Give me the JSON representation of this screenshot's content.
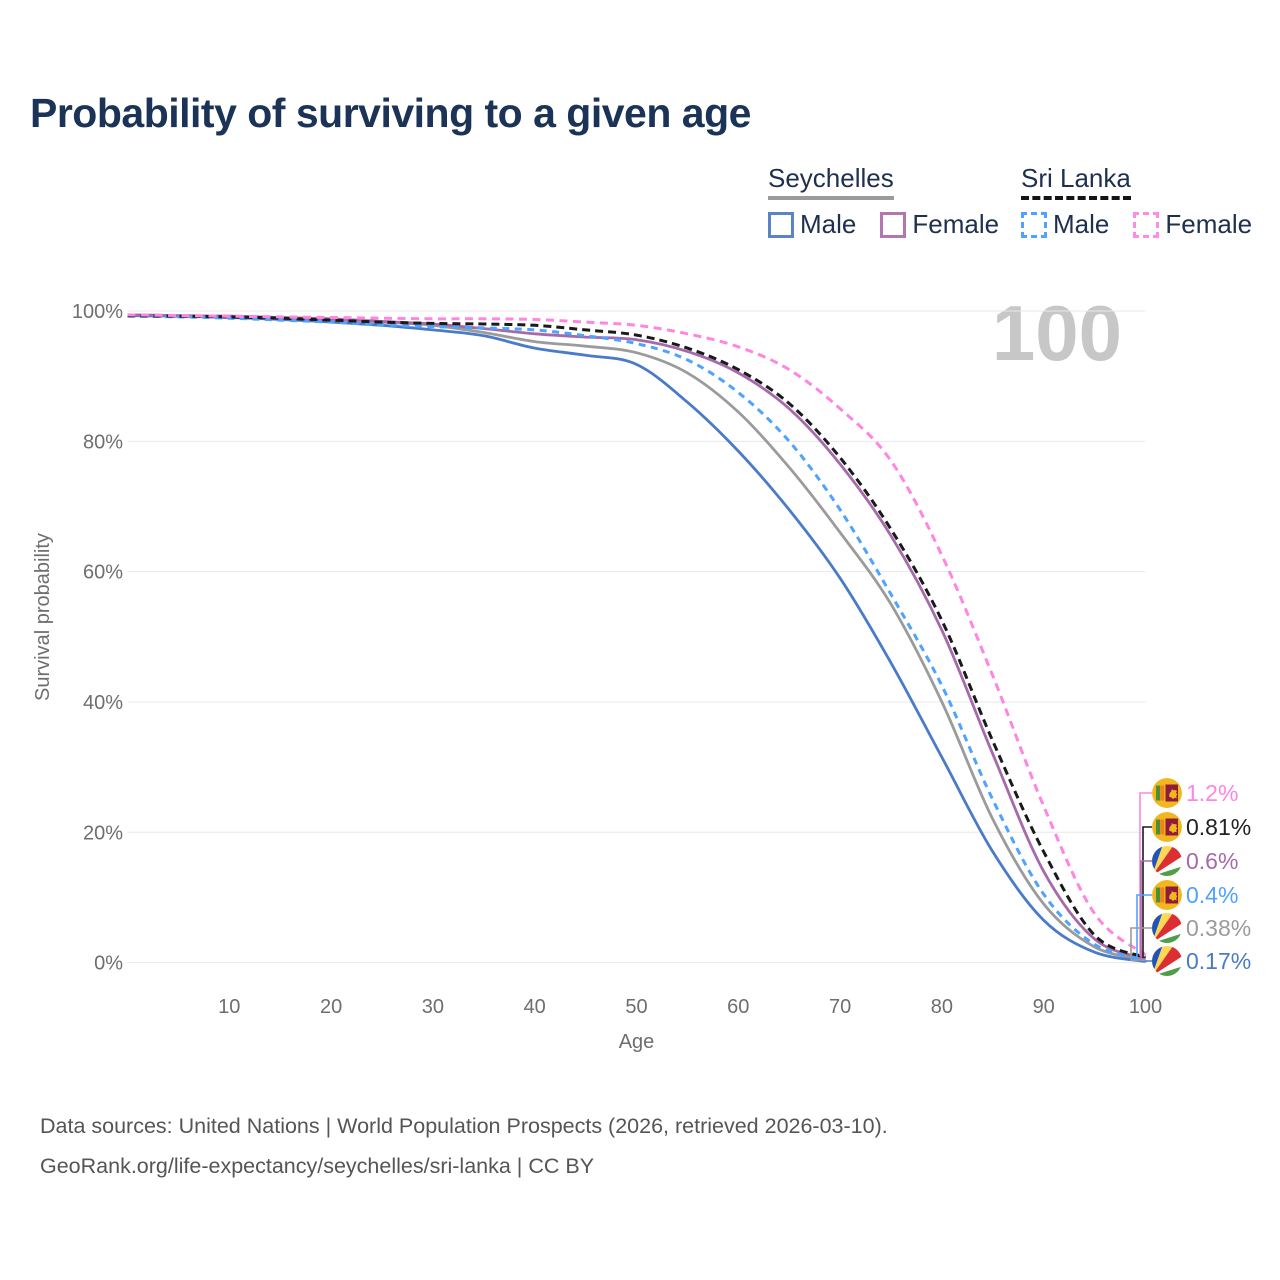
{
  "title": "Probability of surviving to a given age",
  "watermark": "100",
  "legend": {
    "groups": [
      {
        "name": "Seychelles",
        "underline_style": "solid",
        "underline_color": "#9b9b9b",
        "items": [
          {
            "label": "Male",
            "color": "#5b84c7",
            "dashed": false
          },
          {
            "label": "Female",
            "color": "#b277af",
            "dashed": false
          }
        ]
      },
      {
        "name": "Sri Lanka",
        "underline_style": "dashed",
        "underline_color": "#141414",
        "items": [
          {
            "label": "Male",
            "color": "#4da3ff",
            "dashed": true
          },
          {
            "label": "Female",
            "color": "#ff8ae8",
            "dashed": true
          }
        ]
      }
    ]
  },
  "chart_data": {
    "type": "line",
    "title": "Probability of surviving to a given age",
    "xlabel": "Age",
    "ylabel": "Survival probability",
    "xlim": [
      0,
      100
    ],
    "ylim": [
      0,
      100
    ],
    "grid": true,
    "x_ticks": [
      10,
      20,
      30,
      40,
      50,
      60,
      70,
      80,
      90,
      100
    ],
    "y_tick_values": [
      100,
      80,
      60,
      40,
      20,
      0
    ],
    "y_tick_labels": [
      "100%",
      "80%",
      "60%",
      "40%",
      "20%",
      "0%"
    ],
    "x": [
      0,
      5,
      10,
      15,
      20,
      25,
      30,
      35,
      40,
      45,
      50,
      55,
      60,
      65,
      70,
      75,
      80,
      85,
      90,
      95,
      100
    ],
    "series": [
      {
        "id": "seychelles_all",
        "name": "Seychelles (all)",
        "country": "Seychelles",
        "sex": "all",
        "color": "#9b9b9b",
        "dash": null,
        "values": [
          99.4,
          99.3,
          99.2,
          99.0,
          98.7,
          98.3,
          97.8,
          96.7,
          95.3,
          94.6,
          93.6,
          90.5,
          84.5,
          76.0,
          66.0,
          55.0,
          40.0,
          22.0,
          9.0,
          2.4,
          0.38
        ]
      },
      {
        "id": "seychelles_male",
        "name": "Seychelles Male",
        "country": "Seychelles",
        "sex": "male",
        "color": "#4a7bc9",
        "dash": null,
        "values": [
          99.3,
          99.2,
          99.0,
          98.7,
          98.3,
          97.8,
          97.1,
          96.2,
          94.3,
          93.2,
          91.8,
          86.0,
          78.5,
          69.5,
          59.0,
          46.0,
          31.5,
          17.0,
          6.5,
          1.6,
          0.17
        ]
      },
      {
        "id": "seychelles_female",
        "name": "Seychelles Female",
        "country": "Seychelles",
        "sex": "female",
        "color": "#a66aab",
        "dash": null,
        "values": [
          99.4,
          99.3,
          99.2,
          99.0,
          98.8,
          98.4,
          98.0,
          97.3,
          96.5,
          96.0,
          95.6,
          93.8,
          90.5,
          85.0,
          76.5,
          65.5,
          51.0,
          32.0,
          14.0,
          3.6,
          0.6
        ]
      },
      {
        "id": "sri_lanka_male",
        "name": "Sri Lanka Male",
        "country": "Sri Lanka",
        "sex": "male",
        "color": "#4da3ff",
        "dash": "7 5.5",
        "values": [
          99.2,
          99.1,
          98.9,
          98.6,
          98.3,
          97.9,
          97.6,
          97.4,
          97.1,
          96.2,
          95.0,
          92.5,
          87.5,
          80.0,
          69.5,
          56.5,
          42.5,
          25.0,
          10.5,
          2.8,
          0.4
        ]
      },
      {
        "id": "sri_lanka_all",
        "name": "Sri Lanka (all)",
        "country": "Sri Lanka",
        "sex": "all",
        "color": "#1a1a1a",
        "dash": "8 5",
        "values": [
          99.3,
          99.2,
          99.1,
          98.9,
          98.6,
          98.3,
          98.1,
          98.0,
          97.8,
          97.1,
          96.3,
          94.3,
          91.0,
          85.8,
          77.5,
          66.5,
          52.5,
          34.0,
          17.0,
          4.2,
          0.81
        ]
      },
      {
        "id": "sri_lanka_female",
        "name": "Sri Lanka Female",
        "country": "Sri Lanka",
        "sex": "female",
        "color": "#ff85e1",
        "dash": "8 5.5",
        "values": [
          99.4,
          99.3,
          99.2,
          99.1,
          99.0,
          98.9,
          98.8,
          98.8,
          98.7,
          98.3,
          97.8,
          96.5,
          94.5,
          91.0,
          85.0,
          77.0,
          62.5,
          44.0,
          24.0,
          7.5,
          1.2
        ]
      }
    ],
    "end_labels": [
      {
        "flag": "sri-lanka",
        "label": "1.2%",
        "series": "sri_lanka_female",
        "color": "#ff85e1"
      },
      {
        "flag": "sri-lanka",
        "label": "0.81%",
        "series": "sri_lanka_all",
        "color": "#222222"
      },
      {
        "flag": "seychelles",
        "label": "0.6%",
        "series": "seychelles_female",
        "color": "#a66aab"
      },
      {
        "flag": "sri-lanka",
        "label": "0.4%",
        "series": "sri_lanka_male",
        "color": "#4da3ff"
      },
      {
        "flag": "seychelles",
        "label": "0.38%",
        "series": "seychelles_all",
        "color": "#9b9b9b"
      },
      {
        "flag": "seychelles",
        "label": "0.17%",
        "series": "seychelles_male",
        "color": "#4a7bc9"
      }
    ]
  },
  "footer": {
    "line1": "Data sources: United Nations | World Population Prospects (2026, retrieved 2026-03-10).",
    "line2": "GeoRank.org/life-expectancy/seychelles/sri-lanka | CC BY"
  }
}
